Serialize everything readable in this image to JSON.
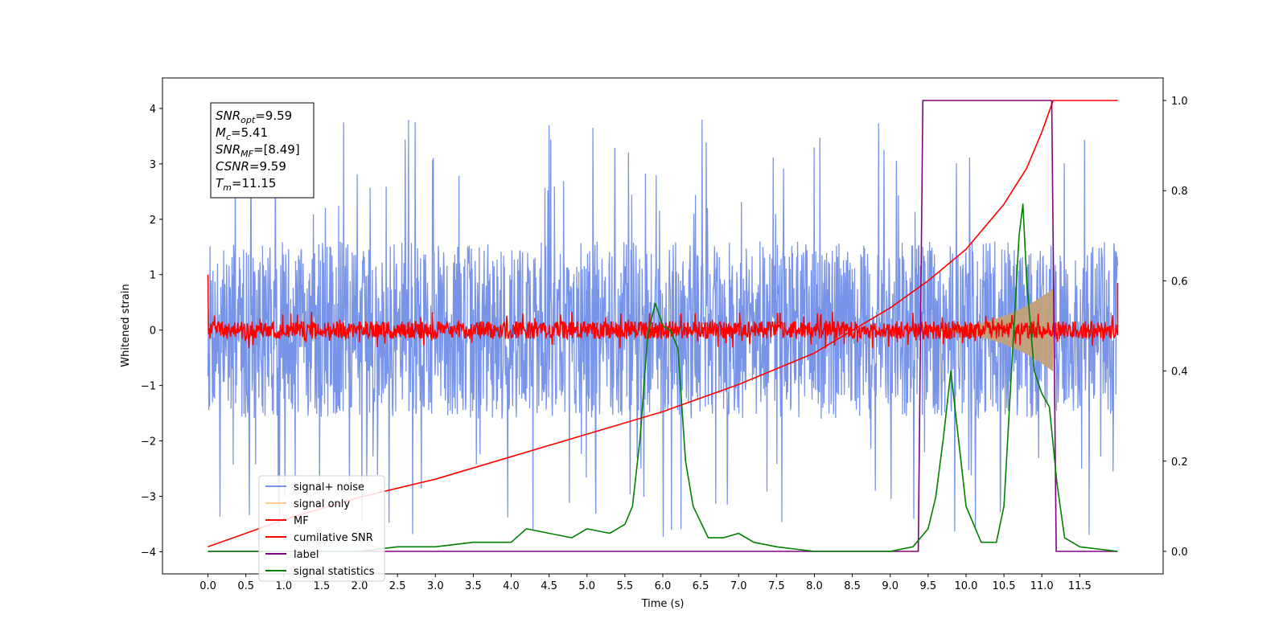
{
  "chart_data": {
    "type": "line",
    "xlabel": "Time (s)",
    "ylabel": "Whitened strain",
    "xlim": [
      -0.6,
      12.6
    ],
    "ylim": [
      -4.4,
      4.55
    ],
    "y2lim": [
      -0.05,
      1.05
    ],
    "xticks": [
      "0.0",
      "0.5",
      "1.0",
      "1.5",
      "2.0",
      "2.5",
      "3.0",
      "3.5",
      "4.0",
      "4.5",
      "5.0",
      "5.5",
      "6.0",
      "6.5",
      "7.0",
      "7.5",
      "8.0",
      "8.5",
      "9.0",
      "9.5",
      "10.0",
      "10.5",
      "11.0",
      "11.5"
    ],
    "yticks": [
      "4",
      "3",
      "2",
      "1",
      "0",
      "−1",
      "−2",
      "−3",
      "−4"
    ],
    "y2ticks": [
      "1.0",
      "0.8",
      "0.6",
      "0.4",
      "0.2",
      "0.0"
    ],
    "grid": false,
    "legend_location": "lower-left",
    "annotation": {
      "lines": [
        {
          "main": "SNR",
          "sub": "opt",
          "rest": "=9.59"
        },
        {
          "main": "M",
          "sub": "c",
          "rest": "=5.41"
        },
        {
          "main": "SNR",
          "sub": "MF",
          "rest": "=[8.49]"
        },
        {
          "main": "CSNR",
          "sub": "",
          "rest": "=9.59"
        },
        {
          "main": "T",
          "sub": "m",
          "rest": "=11.15"
        }
      ]
    },
    "series": [
      {
        "name": "signal+ noise",
        "color": "#7894e8",
        "axis": "left",
        "band": [
          -2.0,
          2.0
        ],
        "peak_max": 4.15,
        "peak_min": -3.8
      },
      {
        "name": "signal only",
        "color": "#ffcc88",
        "axis": "left",
        "chirp_start": 9.0,
        "chirp_end": 11.15,
        "amp_max": 0.75
      },
      {
        "name": "MF",
        "color": "#ff0000",
        "axis": "left",
        "band": [
          -0.25,
          0.25
        ]
      },
      {
        "name": "cumilative SNR",
        "color": "#ff0000",
        "axis": "right",
        "x": [
          0.0,
          1.0,
          2.0,
          3.0,
          4.0,
          5.0,
          6.0,
          7.0,
          8.0,
          8.5,
          9.0,
          9.5,
          10.0,
          10.5,
          10.8,
          11.0,
          11.15,
          12.0
        ],
        "y": [
          0.01,
          0.07,
          0.12,
          0.16,
          0.21,
          0.26,
          0.31,
          0.37,
          0.44,
          0.49,
          0.54,
          0.6,
          0.67,
          0.77,
          0.85,
          0.93,
          1.0,
          1.0
        ]
      },
      {
        "name": "label",
        "color": "#800080",
        "axis": "right",
        "x": [
          0.0,
          9.37,
          9.43,
          11.13,
          11.19,
          12.0
        ],
        "y": [
          0.0,
          0.0,
          1.0,
          1.0,
          0.0,
          0.0
        ]
      },
      {
        "name": "signal statistics",
        "color": "#008000",
        "axis": "right",
        "x": [
          0.0,
          1.0,
          2.0,
          2.5,
          3.0,
          3.5,
          4.0,
          4.2,
          4.5,
          4.8,
          5.0,
          5.3,
          5.5,
          5.6,
          5.7,
          5.8,
          5.9,
          6.0,
          6.1,
          6.2,
          6.3,
          6.4,
          6.6,
          6.8,
          7.0,
          7.2,
          7.5,
          8.0,
          8.5,
          9.0,
          9.3,
          9.5,
          9.6,
          9.7,
          9.8,
          9.9,
          10.0,
          10.2,
          10.4,
          10.5,
          10.6,
          10.7,
          10.75,
          10.8,
          10.9,
          11.0,
          11.1,
          11.2,
          11.3,
          11.5,
          12.0
        ],
        "y": [
          0.0,
          0.0,
          0.0,
          0.01,
          0.01,
          0.02,
          0.02,
          0.05,
          0.04,
          0.03,
          0.05,
          0.04,
          0.06,
          0.1,
          0.25,
          0.48,
          0.55,
          0.5,
          0.49,
          0.45,
          0.2,
          0.1,
          0.03,
          0.03,
          0.04,
          0.02,
          0.01,
          0.0,
          0.0,
          0.0,
          0.01,
          0.05,
          0.12,
          0.25,
          0.4,
          0.25,
          0.1,
          0.02,
          0.02,
          0.1,
          0.4,
          0.7,
          0.77,
          0.6,
          0.4,
          0.35,
          0.32,
          0.15,
          0.03,
          0.01,
          0.0
        ]
      }
    ]
  }
}
